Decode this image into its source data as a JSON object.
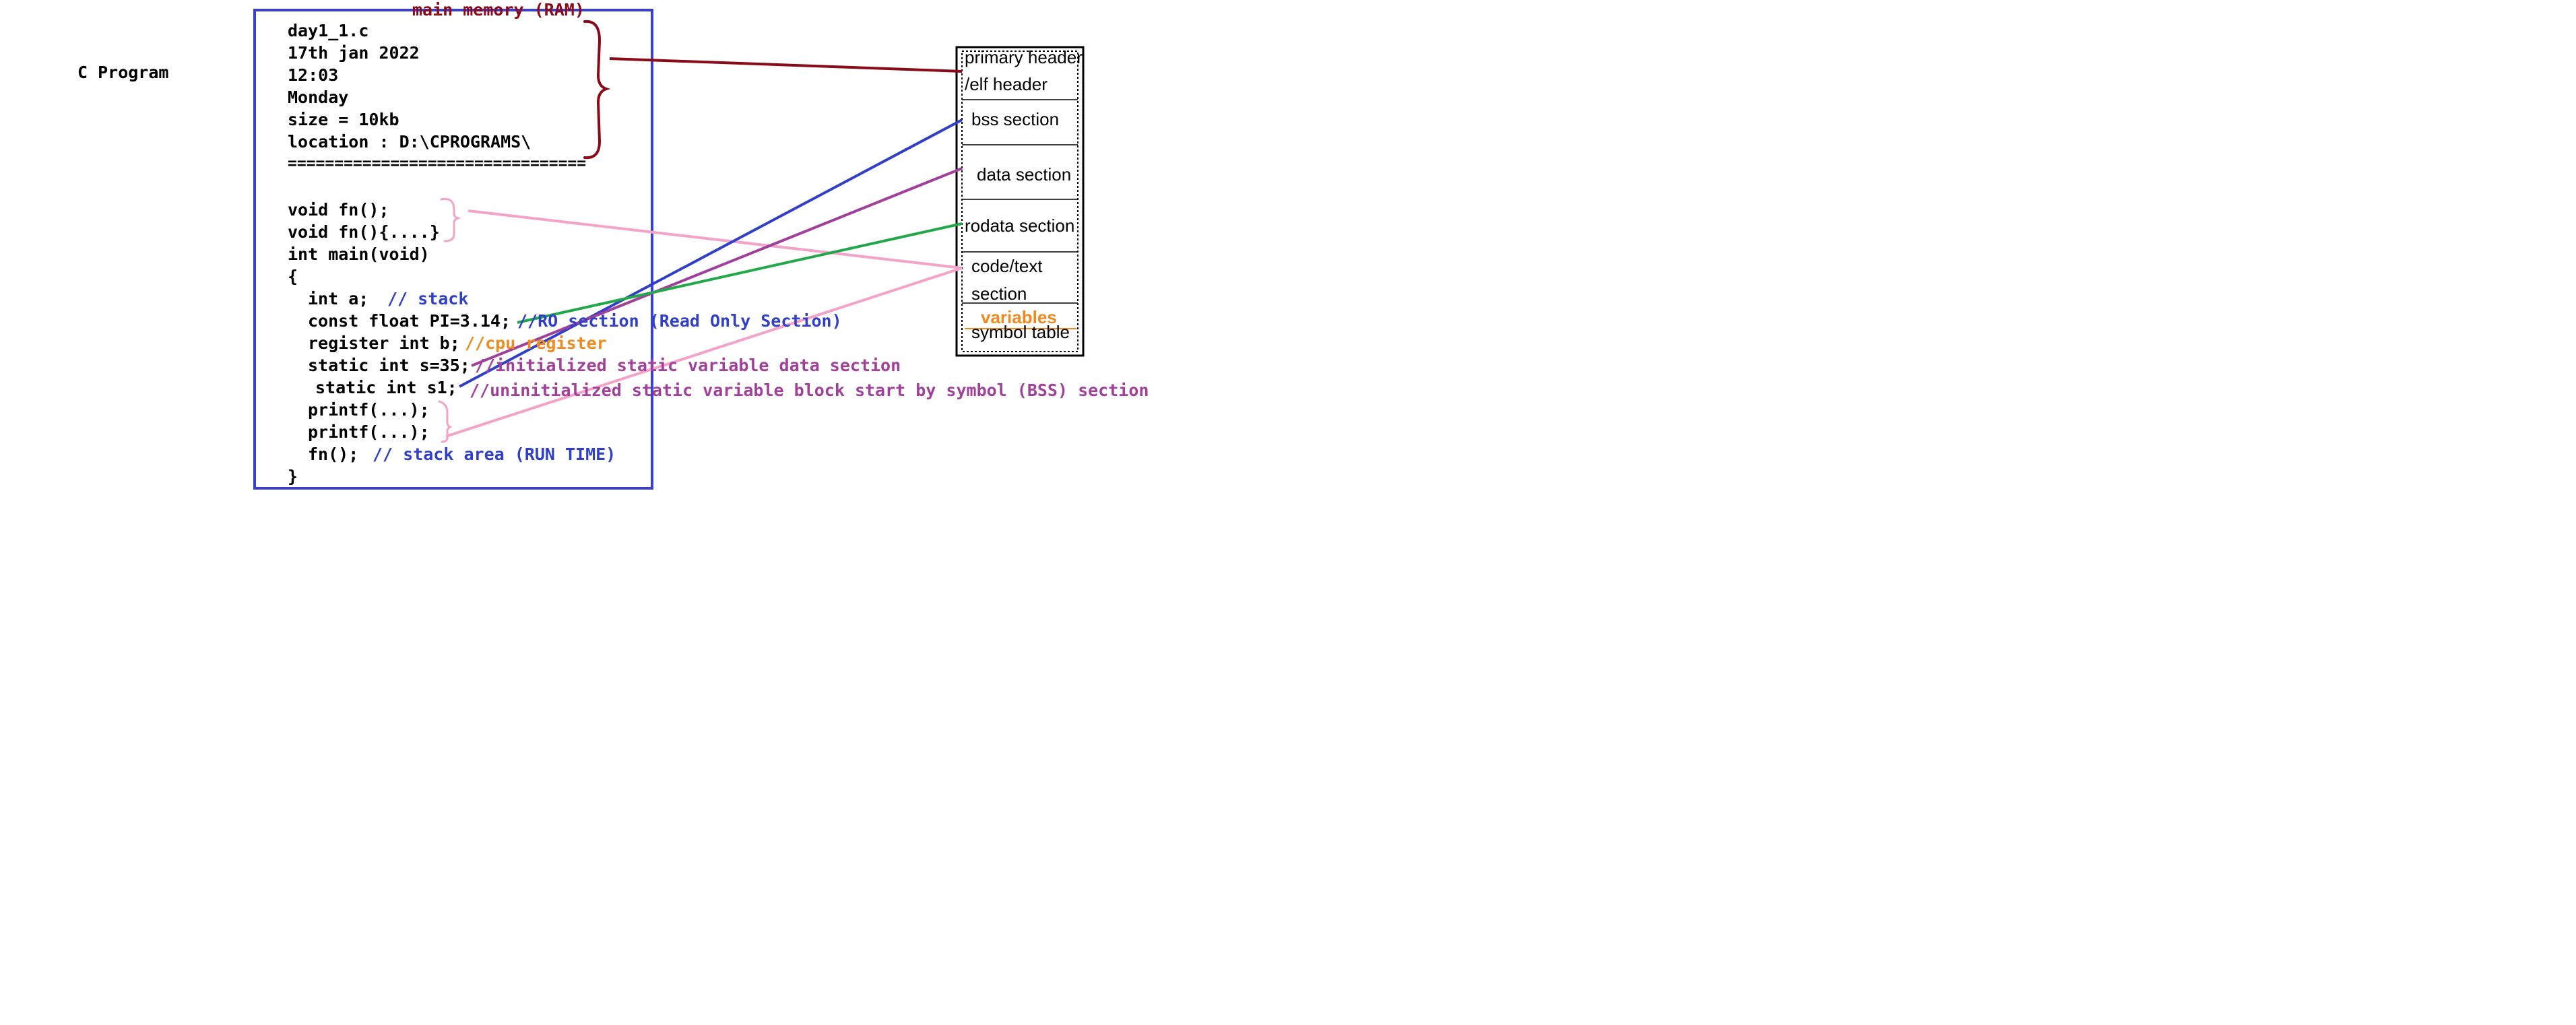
{
  "side_label": "C Program",
  "memory_label": "main memory (RAM)",
  "file_info": {
    "filename": "day1_1.c",
    "date": "17th jan 2022",
    "time": "12:03",
    "day": "Monday",
    "size": "size = 10kb",
    "location": "location : D:\\CPROGRAMS\\",
    "separator": "================================"
  },
  "code": {
    "decl1": "void fn();",
    "def1": "void fn(){....}",
    "main_sig": "int main(void)",
    "open_brace": "{",
    "line_int_a": "int a;",
    "line_const": "const float PI=3.14;",
    "line_register": "register int b;",
    "line_static_s": "static int s=35;",
    "line_static_s1": "static int s1;",
    "line_printf1": "printf(...);",
    "line_printf2": "printf(...);",
    "line_fn_call": "fn();",
    "close_brace": "}"
  },
  "comments": {
    "stack": "// stack",
    "ro_section": "//RO section (Read Only Section)",
    "cpu_register": "//cpu register",
    "initialized_static": "//initialized static variable data section",
    "uninitialized_static": "//uninitialized static variable block start by symbol (BSS) section",
    "stack_area": "// stack area (RUN TIME)"
  },
  "segments": {
    "primary_header": "primary header",
    "elf_header": "/elf header",
    "bss": "bss section",
    "data": "data section",
    "rodata": "rodata section",
    "code_text_1": "code/text",
    "code_text_2": "section",
    "variables": "variables",
    "symbol_table": "symbol table"
  },
  "colors": {
    "program_box": "#3a3fd4",
    "brace_red": "#8b0a1a",
    "pink": "#f3a3c8",
    "blue": "#2f3fc8",
    "purple": "#a0409a",
    "green": "#22a84a",
    "orange": "#f08a1e",
    "comment_blue": "#2f3fc8",
    "comment_purple": "#a0409a",
    "comment_green": "#1e9a48"
  }
}
